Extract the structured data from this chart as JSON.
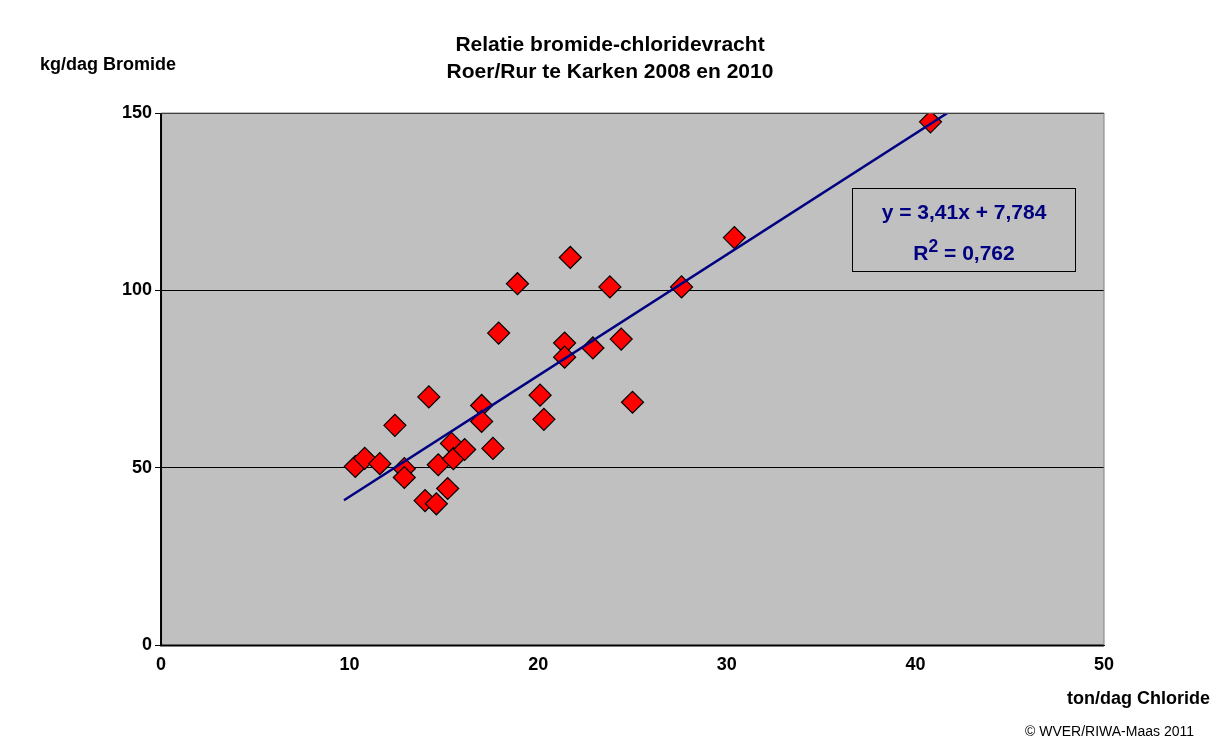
{
  "chart_data": {
    "type": "scatter",
    "title": "Relatie bromide-chloridevracht\nRoer/Rur te Karken 2008 en 2010",
    "xlabel": "ton/dag Chloride",
    "ylabel": "kg/dag Bromide",
    "series": [
      {
        "color": "#ff0000",
        "marker": "diamond",
        "x": [
          10.3,
          10.8,
          11.6,
          12.4,
          12.9,
          12.9,
          14.2,
          14.0,
          14.6,
          15.2,
          14.7,
          15.4,
          15.5,
          16.1,
          17.6,
          17.0,
          17.0,
          17.9,
          18.9,
          20.1,
          20.3,
          21.4,
          21.4,
          21.7,
          22.9,
          23.8,
          24.4,
          25.0,
          27.6,
          30.4,
          40.8
        ],
        "values": [
          50.4,
          52.7,
          51.2,
          62.0,
          49.8,
          47.3,
          70.0,
          40.8,
          39.9,
          44.2,
          50.9,
          56.9,
          52.6,
          55.2,
          55.5,
          67.6,
          63.1,
          88.0,
          101.9,
          70.5,
          63.7,
          85.2,
          81.2,
          109.3,
          83.8,
          101.0,
          86.3,
          68.5,
          101.0,
          114.9,
          147.5
        ]
      },
      {
        "type": "line",
        "color": "#000080",
        "marker": "none",
        "line_style": "solid",
        "x": [
          9.7,
          41.7
        ],
        "values": [
          40.9,
          150.0
        ]
      }
    ],
    "xlim": [
      0,
      50
    ],
    "xticks": [
      0,
      10,
      20,
      30,
      40,
      50
    ],
    "ylim": [
      0,
      150
    ],
    "yticks": [
      0,
      50,
      100,
      150
    ],
    "grid": "y",
    "legend": false,
    "annotations": [
      "y = 3,41x + 7,784\nR$^{2}$ = 0,762",
      "© WVER/RIWA-Maas 2011"
    ]
  }
}
